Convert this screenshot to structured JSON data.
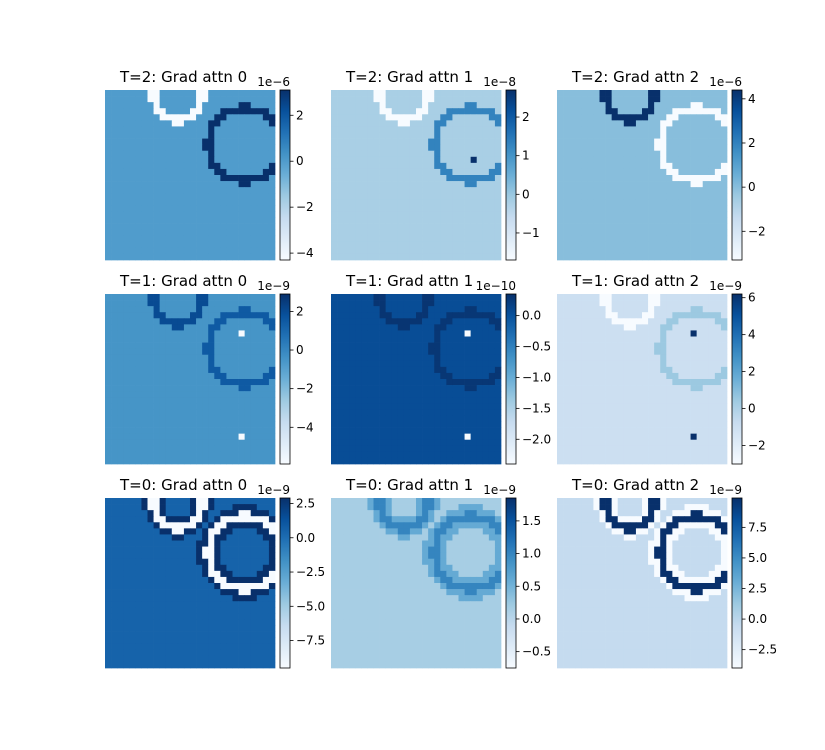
{
  "figure": {
    "colormap": "Blues",
    "grid": false,
    "colormap_stops": [
      "#f7fbff",
      "#deebf7",
      "#c6dbef",
      "#9ecae1",
      "#6baed6",
      "#4292c6",
      "#2171b5",
      "#08519c",
      "#08306b"
    ]
  },
  "chart_data": [
    {
      "type": "heatmap",
      "title": "T=2: Grad attn 0",
      "background_value": 0.0,
      "colorbar": {
        "offset_label": "1e−6",
        "vmin": -4.3,
        "vmax": 3.1,
        "ticks": [
          2,
          0,
          -2,
          -4
        ],
        "tick_labels": [
          "2",
          "0",
          "−2",
          "−4"
        ]
      },
      "features": [
        {
          "shape": "arc",
          "cx": 12,
          "cy": 1,
          "r": 4,
          "value": -4.3
        },
        {
          "shape": "arc",
          "cx": 23,
          "cy": 9,
          "r": 6,
          "value": 3.1
        }
      ]
    },
    {
      "type": "heatmap",
      "title": "T=2: Grad attn 1",
      "background_value": -0.2,
      "colorbar": {
        "offset_label": "1e−8",
        "vmin": -1.7,
        "vmax": 2.7,
        "ticks": [
          2,
          1,
          0,
          -1
        ],
        "tick_labels": [
          "2",
          "1",
          "0",
          "−1"
        ]
      },
      "features": [
        {
          "shape": "arc",
          "cx": 12,
          "cy": 1,
          "r": 4,
          "value": -1.7
        },
        {
          "shape": "arc",
          "cx": 23,
          "cy": 9,
          "r": 6,
          "value": 1.3
        },
        {
          "shape": "cell",
          "col": 23,
          "row": 11,
          "value": 2.7
        }
      ]
    },
    {
      "type": "heatmap",
      "title": "T=2: Grad attn 2",
      "background_value": 0.0,
      "colorbar": {
        "offset_label": "1e−6",
        "vmin": -3.3,
        "vmax": 4.4,
        "ticks": [
          4,
          2,
          0,
          -2
        ],
        "tick_labels": [
          "4",
          "2",
          "0",
          "−2"
        ]
      },
      "features": [
        {
          "shape": "arc",
          "cx": 12,
          "cy": 1,
          "r": 4,
          "value": 4.4
        },
        {
          "shape": "arc",
          "cx": 23,
          "cy": 9,
          "r": 6,
          "value": -3.3
        }
      ]
    },
    {
      "type": "heatmap",
      "title": "T=1: Grad attn 0",
      "background_value": -0.5,
      "colorbar": {
        "offset_label": "1e−9",
        "vmin": -5.9,
        "vmax": 2.9,
        "ticks": [
          2,
          0,
          -2,
          -4
        ],
        "tick_labels": [
          "2",
          "0",
          "−2",
          "−4"
        ]
      },
      "features": [
        {
          "shape": "arc",
          "cx": 12,
          "cy": 1,
          "r": 4,
          "value": 2.0
        },
        {
          "shape": "arc",
          "cx": 23,
          "cy": 9,
          "r": 6,
          "value": 1.5
        },
        {
          "shape": "cell",
          "col": 22,
          "row": 6,
          "value": -5.9
        },
        {
          "shape": "cell",
          "col": 22,
          "row": 23,
          "value": -5.9
        }
      ]
    },
    {
      "type": "heatmap",
      "title": "T=1: Grad attn 1",
      "background_value": 0.05,
      "colorbar": {
        "offset_label": "1e−10",
        "vmin": -2.4,
        "vmax": 0.35,
        "ticks": [
          0.0,
          -0.5,
          -1.0,
          -1.5,
          -2.0
        ],
        "tick_labels": [
          "0.0",
          "−0.5",
          "−1.0",
          "−1.5",
          "−2.0"
        ]
      },
      "features": [
        {
          "shape": "arc",
          "cx": 12,
          "cy": 1,
          "r": 4,
          "value": 0.3
        },
        {
          "shape": "arc",
          "cx": 23,
          "cy": 9,
          "r": 6,
          "value": 0.28
        },
        {
          "shape": "cell",
          "col": 22,
          "row": 6,
          "value": -2.4
        },
        {
          "shape": "cell",
          "col": 22,
          "row": 23,
          "value": -2.4
        }
      ]
    },
    {
      "type": "heatmap",
      "title": "T=1: Grad attn 2",
      "background_value": -1.0,
      "colorbar": {
        "offset_label": "1e−9",
        "vmin": -3.0,
        "vmax": 6.2,
        "ticks": [
          6,
          4,
          2,
          0,
          -2
        ],
        "tick_labels": [
          "6",
          "4",
          "2",
          "0",
          "−2"
        ]
      },
      "features": [
        {
          "shape": "arc",
          "cx": 12,
          "cy": 1,
          "r": 4,
          "value": -3.0
        },
        {
          "shape": "arc",
          "cx": 23,
          "cy": 9,
          "r": 6,
          "value": 0.5
        },
        {
          "shape": "cell",
          "col": 22,
          "row": 6,
          "value": 6.2
        },
        {
          "shape": "cell",
          "col": 22,
          "row": 23,
          "value": 6.2
        }
      ]
    },
    {
      "type": "heatmap",
      "title": "T=0: Grad attn 0",
      "background_value": 0.5,
      "colorbar": {
        "offset_label": "1e−9",
        "vmin": -9.5,
        "vmax": 2.9,
        "ticks": [
          2.5,
          0.0,
          -2.5,
          -5.0,
          -7.5
        ],
        "tick_labels": [
          "2.5",
          "0.0",
          "−2.5",
          "−5.0",
          "−7.5"
        ]
      },
      "features": [
        {
          "shape": "halo",
          "cx": 12,
          "cy": 1,
          "r": 4,
          "value": 2.9
        },
        {
          "shape": "halo",
          "cx": 23,
          "cy": 9,
          "r": 6,
          "value": 2.9
        },
        {
          "shape": "arc",
          "cx": 12,
          "cy": 1,
          "r": 4,
          "value": -9.5
        },
        {
          "shape": "arc",
          "cx": 23,
          "cy": 9,
          "r": 6,
          "value": -9.5
        }
      ]
    },
    {
      "type": "heatmap",
      "title": "T=0: Grad attn 1",
      "background_value": 0.15,
      "colorbar": {
        "offset_label": "1e−9",
        "vmin": -0.75,
        "vmax": 1.85,
        "ticks": [
          1.5,
          1.0,
          0.5,
          0.0,
          -0.5
        ],
        "tick_labels": [
          "1.5",
          "1.0",
          "0.5",
          "0.0",
          "−0.5"
        ]
      },
      "features": [
        {
          "shape": "halo",
          "cx": 12,
          "cy": 1,
          "r": 4,
          "value": 0.6
        },
        {
          "shape": "halo",
          "cx": 23,
          "cy": 9,
          "r": 6,
          "value": 0.6
        },
        {
          "shape": "arc",
          "cx": 12,
          "cy": 1,
          "r": 4,
          "value": 1.0
        },
        {
          "shape": "arc",
          "cx": 23,
          "cy": 9,
          "r": 6,
          "value": 1.0
        }
      ]
    },
    {
      "type": "heatmap",
      "title": "T=0: Grad attn 2",
      "background_value": -0.5,
      "colorbar": {
        "offset_label": "1e−9",
        "vmin": -4.0,
        "vmax": 9.9,
        "ticks": [
          7.5,
          5.0,
          2.5,
          0.0,
          -2.5
        ],
        "tick_labels": [
          "7.5",
          "5.0",
          "2.5",
          "0.0",
          "−2.5"
        ]
      },
      "features": [
        {
          "shape": "halo",
          "cx": 12,
          "cy": 1,
          "r": 4,
          "value": -4.0
        },
        {
          "shape": "halo",
          "cx": 23,
          "cy": 9,
          "r": 6,
          "value": -4.0
        },
        {
          "shape": "arc",
          "cx": 12,
          "cy": 1,
          "r": 4,
          "value": 9.9
        },
        {
          "shape": "arc",
          "cx": 23,
          "cy": 9,
          "r": 6,
          "value": 9.9
        }
      ]
    }
  ]
}
